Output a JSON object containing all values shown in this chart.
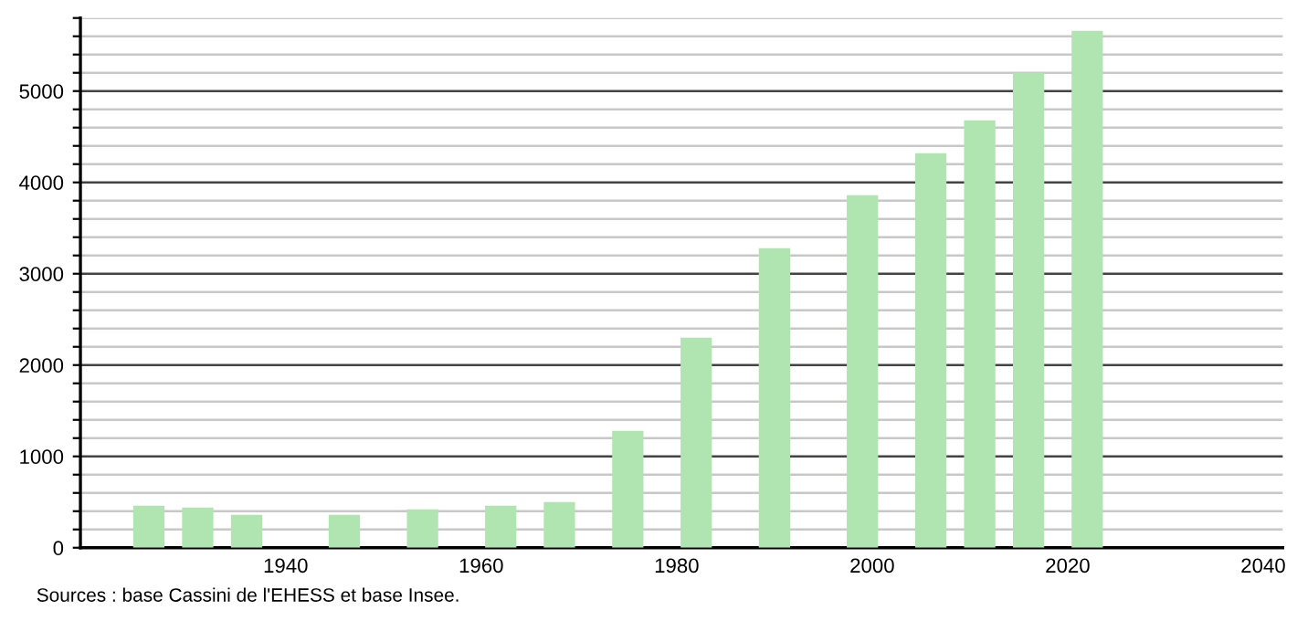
{
  "chart_data": {
    "type": "bar",
    "x": [
      1926,
      1931,
      1936,
      1946,
      1954,
      1962,
      1968,
      1975,
      1982,
      1990,
      1999,
      2006,
      2011,
      2016,
      2022
    ],
    "values": [
      460,
      440,
      360,
      360,
      420,
      460,
      500,
      1280,
      2300,
      3280,
      3860,
      4320,
      4680,
      5200,
      5660
    ],
    "color": "#b0e4b0",
    "xlim": [
      1919,
      2042
    ],
    "xticks": [
      1940,
      1960,
      1980,
      2000,
      2020,
      2040
    ],
    "ylim": [
      0,
      5800
    ],
    "yticks": [
      0,
      {
        "value": 200,
        "label": null
      },
      {
        "value": 400,
        "label": null
      },
      {
        "value": 600,
        "label": null
      },
      {
        "value": 800,
        "label": null
      },
      1000,
      {
        "value": 1200,
        "label": null
      },
      {
        "value": 1400,
        "label": null
      },
      {
        "value": 1600,
        "label": null
      },
      {
        "value": 1800,
        "label": null
      },
      2000,
      {
        "value": 2200,
        "label": null
      },
      {
        "value": 2400,
        "label": null
      },
      {
        "value": 2600,
        "label": null
      },
      {
        "value": 2800,
        "label": null
      },
      3000,
      {
        "value": 3200,
        "label": null
      },
      {
        "value": 3400,
        "label": null
      },
      {
        "value": 3600,
        "label": null
      },
      {
        "value": 3800,
        "label": null
      },
      4000,
      {
        "value": 4200,
        "label": null
      },
      {
        "value": 4400,
        "label": null
      },
      {
        "value": 4600,
        "label": null
      },
      {
        "value": 4800,
        "label": null
      },
      5000,
      {
        "value": 5200,
        "label": null
      },
      {
        "value": 5400,
        "label": null
      },
      {
        "value": 5600,
        "label": null
      },
      {
        "value": 5800,
        "label": null
      }
    ],
    "grid": "y",
    "annotations": [
      "Sources : base Cassini de l'EHESS et base Insee."
    ]
  }
}
